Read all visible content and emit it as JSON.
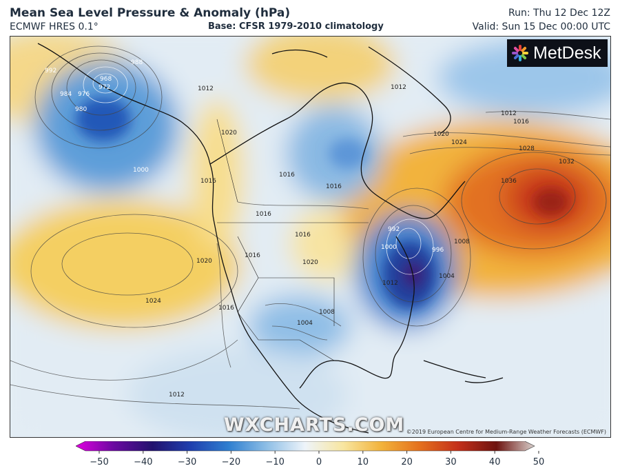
{
  "header": {
    "title": "Mean Sea Level Pressure & Anomaly (hPa)",
    "model": "ECMWF HRES 0.1°",
    "base": "Base: CFSR 1979-2010 climatology",
    "run": "Run: Thu 12 Dec 12Z",
    "valid": "Valid: Sun 15 Dec 00:00 UTC"
  },
  "logo": {
    "text": "MetDesk",
    "icon": "metdesk-burst-icon"
  },
  "watermark": "WXCHARTS.COM",
  "copyright": "©2019 European Centre for Medium-Range Weather Forecasts (ECMWF)",
  "colorbar": {
    "ticks": [
      "−50",
      "−40",
      "−30",
      "−20",
      "−10",
      "0",
      "10",
      "20",
      "30",
      "40",
      "50"
    ],
    "min": -50,
    "max": 50,
    "stops": [
      "#e000e0",
      "#6a0aa0",
      "#22126e",
      "#1f3fae",
      "#2f7fd0",
      "#8fbfe6",
      "#eef4fa",
      "#f8e6a0",
      "#f2b23a",
      "#e4701e",
      "#c4301a",
      "#6e1410",
      "#d8d0cc"
    ]
  },
  "isobar_labels": {
    "alaska_low": [
      "968",
      "972",
      "976",
      "984",
      "980",
      "992",
      "988"
    ],
    "pacific": [
      "1000",
      "1012",
      "1020",
      "1024",
      "1012"
    ],
    "west": [
      "1020",
      "1016",
      "1016",
      "1016",
      "1016",
      "1016"
    ],
    "central": [
      "1020",
      "1016",
      "1016",
      "1008",
      "1004"
    ],
    "east_low": [
      "992",
      "996",
      "1004",
      "1008",
      "1000"
    ],
    "atlantic_high": [
      "1012",
      "1016",
      "1020",
      "1024",
      "1028",
      "1032",
      "1036"
    ],
    "north": [
      "1012",
      "1012"
    ]
  }
}
